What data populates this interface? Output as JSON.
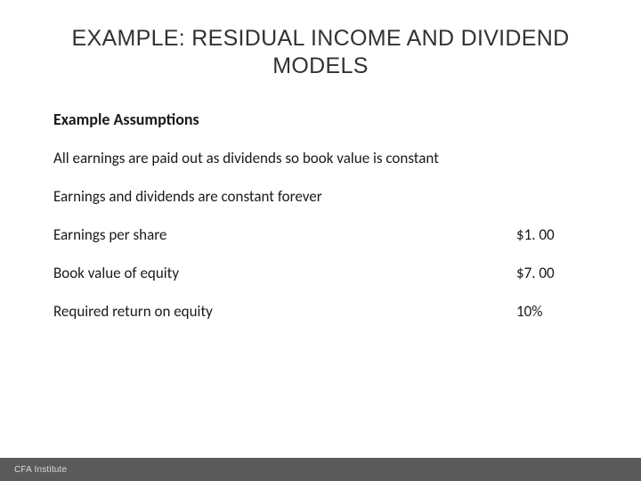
{
  "title": "EXAMPLE: RESIDUAL INCOME AND DIVIDEND MODELS",
  "section_heading": "Example Assumptions",
  "assumptions": [
    "All earnings are paid out as dividends so book value is constant",
    "Earnings and dividends are constant forever"
  ],
  "rows": [
    {
      "label": "Earnings per share",
      "value": "$1. 00"
    },
    {
      "label": "Book value of equity",
      "value": "$7. 00"
    },
    {
      "label": "Required return on equity",
      "value": "10%"
    }
  ],
  "footer": "CFA Institute"
}
